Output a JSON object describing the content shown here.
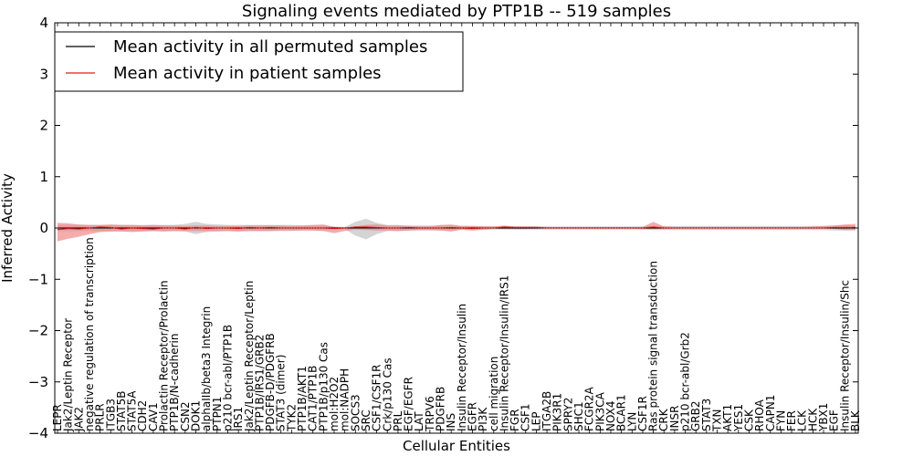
{
  "chart_data": {
    "type": "line",
    "title": "Signaling events mediated by PTP1B -- 519 samples",
    "xlabel": "Cellular Entities",
    "ylabel": "Inferred Activity",
    "ylim": [
      -4,
      4
    ],
    "yticks": [
      4,
      3,
      2,
      1,
      0,
      -1,
      -2,
      -3,
      -4
    ],
    "ytick_labels": [
      "4",
      "3",
      "2",
      "1",
      "0",
      "−1",
      "−2",
      "−3",
      "−4"
    ],
    "grid": false,
    "legend": {
      "position": "top-left",
      "entries": [
        {
          "label": "Mean activity in all permuted samples",
          "color": "#000000"
        },
        {
          "label": "Mean activity in patient samples",
          "color": "#e31a1c"
        }
      ]
    },
    "categories": [
      "LEPR",
      "Jak2/Leptin Receptor",
      "JAK2",
      "negative regulation of transcription",
      "PRLR",
      "ITGB3",
      "STAT5B",
      "STAT5A",
      "CDH2",
      "CAV1",
      "Prolactin Receptor/Prolactin",
      "PTP1B/N-cadherin",
      "CSN2",
      "DOK1",
      "alphaIIb/beta3 Integrin",
      "PTPN1",
      "p210 bcr-abl/PTP1B",
      "IRS1",
      "Jak2/Leptin Receptor/Leptin",
      "PTP1B/IRS1/GRB2",
      "PDGFB-D/PDGFRB",
      "STAT3 (dimer)",
      "TYK2",
      "PTP1B/AKT1",
      "CAT1/PTP1B",
      "PTP1B/p130 Cas",
      "mol:H2O2",
      "mol:NADPH",
      "SOCS3",
      "SRC",
      "CSF1/CSF1R",
      "Crk/p130 Cas",
      "PRL",
      "EGF/EGFR",
      "LAT",
      "TRPV6",
      "PDGFRB",
      "INS",
      "Insulin Receptor/Insulin",
      "EGFR",
      "PI3K",
      "cell migration",
      "Insulin Receptor/Insulin/IRS1",
      "FGR",
      "CSF1",
      "LEP",
      "ITGA2B",
      "PIK3R1",
      "SPRY2",
      "SHC1",
      "FCGR2A",
      "PIK3CA",
      "NOX4",
      "BCAR1",
      "LYN",
      "CSF1R",
      "Ras protein signal transduction",
      "CRK",
      "INSR",
      "p210 bcr-abl/Grb2",
      "GRB2",
      "STAT3",
      "TXN",
      "AKT1",
      "YES1",
      "CSK",
      "RHOA",
      "CAPN1",
      "FYN",
      "FER",
      "LCK",
      "HCK",
      "YBX1",
      "EGF",
      "Insulin Receptor/Insulin/Shc",
      "BLK"
    ],
    "series": [
      {
        "name": "Mean activity in all permuted samples",
        "color": "#000000",
        "values": [
          0,
          0,
          0,
          0,
          0,
          0,
          0,
          0,
          0,
          0,
          0,
          0,
          0,
          0,
          0,
          0,
          0,
          0,
          0,
          0,
          0,
          0,
          0,
          0,
          0,
          0,
          0,
          0,
          0,
          0,
          0,
          0,
          0,
          0,
          0,
          0,
          0,
          0,
          0,
          0,
          0,
          0,
          0,
          0,
          0,
          0,
          0,
          0,
          0,
          0,
          0,
          0,
          0,
          0,
          0,
          0,
          0,
          0,
          0,
          0,
          0,
          0,
          0,
          0,
          0,
          0,
          0,
          0,
          0,
          0,
          0,
          0,
          0,
          0,
          0,
          0
        ],
        "band_low": [
          -0.06,
          -0.06,
          -0.06,
          -0.06,
          -0.06,
          -0.06,
          -0.06,
          -0.06,
          -0.06,
          -0.06,
          -0.06,
          -0.06,
          -0.07,
          -0.12,
          -0.08,
          -0.07,
          -0.06,
          -0.06,
          -0.06,
          -0.06,
          -0.06,
          -0.06,
          -0.06,
          -0.05,
          -0.05,
          -0.05,
          -0.03,
          -0.02,
          -0.15,
          -0.22,
          -0.12,
          -0.06,
          -0.06,
          -0.05,
          -0.05,
          -0.05,
          -0.05,
          -0.05,
          -0.04,
          -0.04,
          -0.04,
          -0.03,
          -0.03,
          -0.03,
          -0.03,
          -0.03,
          -0.03,
          -0.03,
          -0.03,
          -0.03,
          -0.03,
          -0.03,
          -0.03,
          -0.03,
          -0.03,
          -0.03,
          -0.04,
          -0.04,
          -0.04,
          -0.04,
          -0.04,
          -0.04,
          -0.04,
          -0.04,
          -0.04,
          -0.04,
          -0.04,
          -0.04,
          -0.04,
          -0.04,
          -0.04,
          -0.04,
          -0.04,
          -0.05,
          -0.05,
          -0.05
        ],
        "band_high": [
          0.06,
          0.06,
          0.06,
          0.06,
          0.06,
          0.06,
          0.06,
          0.06,
          0.06,
          0.06,
          0.06,
          0.06,
          0.08,
          0.12,
          0.08,
          0.07,
          0.06,
          0.06,
          0.06,
          0.06,
          0.06,
          0.06,
          0.06,
          0.05,
          0.05,
          0.05,
          0.03,
          0.02,
          0.12,
          0.18,
          0.1,
          0.06,
          0.06,
          0.05,
          0.05,
          0.05,
          0.05,
          0.05,
          0.04,
          0.04,
          0.04,
          0.03,
          0.03,
          0.03,
          0.03,
          0.03,
          0.03,
          0.03,
          0.03,
          0.03,
          0.03,
          0.03,
          0.03,
          0.03,
          0.03,
          0.03,
          0.04,
          0.04,
          0.04,
          0.04,
          0.04,
          0.04,
          0.04,
          0.04,
          0.04,
          0.04,
          0.04,
          0.04,
          0.04,
          0.04,
          0.04,
          0.04,
          0.04,
          0.05,
          0.05,
          0.05
        ]
      },
      {
        "name": "Mean activity in patient samples",
        "color": "#e31a1c",
        "values": [
          -0.03,
          -0.01,
          -0.02,
          0.0,
          0.02,
          0.01,
          -0.02,
          0.0,
          -0.01,
          -0.02,
          0.0,
          0.0,
          -0.02,
          0.01,
          -0.01,
          0.0,
          0.0,
          -0.01,
          0.01,
          0.0,
          0.01,
          0.0,
          0.0,
          0.0,
          0.0,
          0.0,
          -0.01,
          0.0,
          0.02,
          0.02,
          0.01,
          0.0,
          0.0,
          0.01,
          0.0,
          0.0,
          0.0,
          0.01,
          0.0,
          -0.01,
          0.0,
          0.0,
          0.02,
          0.01,
          0.01,
          0.01,
          0.0,
          0.0,
          0.0,
          0.0,
          0.0,
          0.0,
          0.0,
          0.0,
          0.0,
          0.0,
          0.02,
          0.0,
          0.0,
          0.0,
          0.0,
          0.0,
          0.0,
          0.0,
          0.0,
          0.0,
          0.0,
          0.0,
          0.0,
          0.0,
          0.0,
          0.0,
          0.0,
          0.01,
          0.01,
          0.01
        ],
        "band_low": [
          -0.26,
          -0.21,
          -0.17,
          -0.12,
          -0.08,
          -0.07,
          -0.07,
          -0.08,
          -0.07,
          -0.06,
          -0.07,
          -0.06,
          -0.06,
          -0.06,
          -0.06,
          -0.06,
          -0.06,
          -0.07,
          -0.06,
          -0.06,
          -0.06,
          -0.05,
          -0.05,
          -0.05,
          -0.05,
          -0.06,
          -0.1,
          -0.06,
          -0.03,
          -0.04,
          -0.05,
          -0.05,
          -0.06,
          -0.05,
          -0.04,
          -0.04,
          -0.05,
          -0.07,
          -0.03,
          -0.05,
          -0.03,
          -0.01,
          -0.02,
          -0.02,
          -0.02,
          -0.01,
          -0.01,
          -0.01,
          -0.01,
          -0.01,
          -0.01,
          -0.01,
          -0.01,
          -0.01,
          -0.01,
          -0.02,
          -0.02,
          -0.02,
          -0.01,
          -0.01,
          -0.01,
          -0.01,
          -0.01,
          -0.01,
          -0.01,
          -0.01,
          -0.01,
          -0.01,
          -0.01,
          -0.01,
          -0.01,
          -0.01,
          -0.01,
          -0.02,
          -0.04,
          -0.04
        ],
        "band_high": [
          0.1,
          0.09,
          0.07,
          0.06,
          0.06,
          0.07,
          0.06,
          0.06,
          0.05,
          0.06,
          0.05,
          0.05,
          0.04,
          0.05,
          0.05,
          0.04,
          0.04,
          0.04,
          0.05,
          0.05,
          0.05,
          0.05,
          0.04,
          0.05,
          0.06,
          0.07,
          0.02,
          0.01,
          0.03,
          0.06,
          0.07,
          0.05,
          0.05,
          0.04,
          0.03,
          0.03,
          0.06,
          0.07,
          0.04,
          0.04,
          0.03,
          0.03,
          0.05,
          0.03,
          0.03,
          0.03,
          0.02,
          0.02,
          0.02,
          0.02,
          0.02,
          0.02,
          0.02,
          0.02,
          0.02,
          0.02,
          0.12,
          0.03,
          0.02,
          0.02,
          0.02,
          0.02,
          0.02,
          0.02,
          0.02,
          0.02,
          0.02,
          0.02,
          0.02,
          0.02,
          0.02,
          0.03,
          0.04,
          0.05,
          0.07,
          0.08
        ]
      }
    ]
  }
}
